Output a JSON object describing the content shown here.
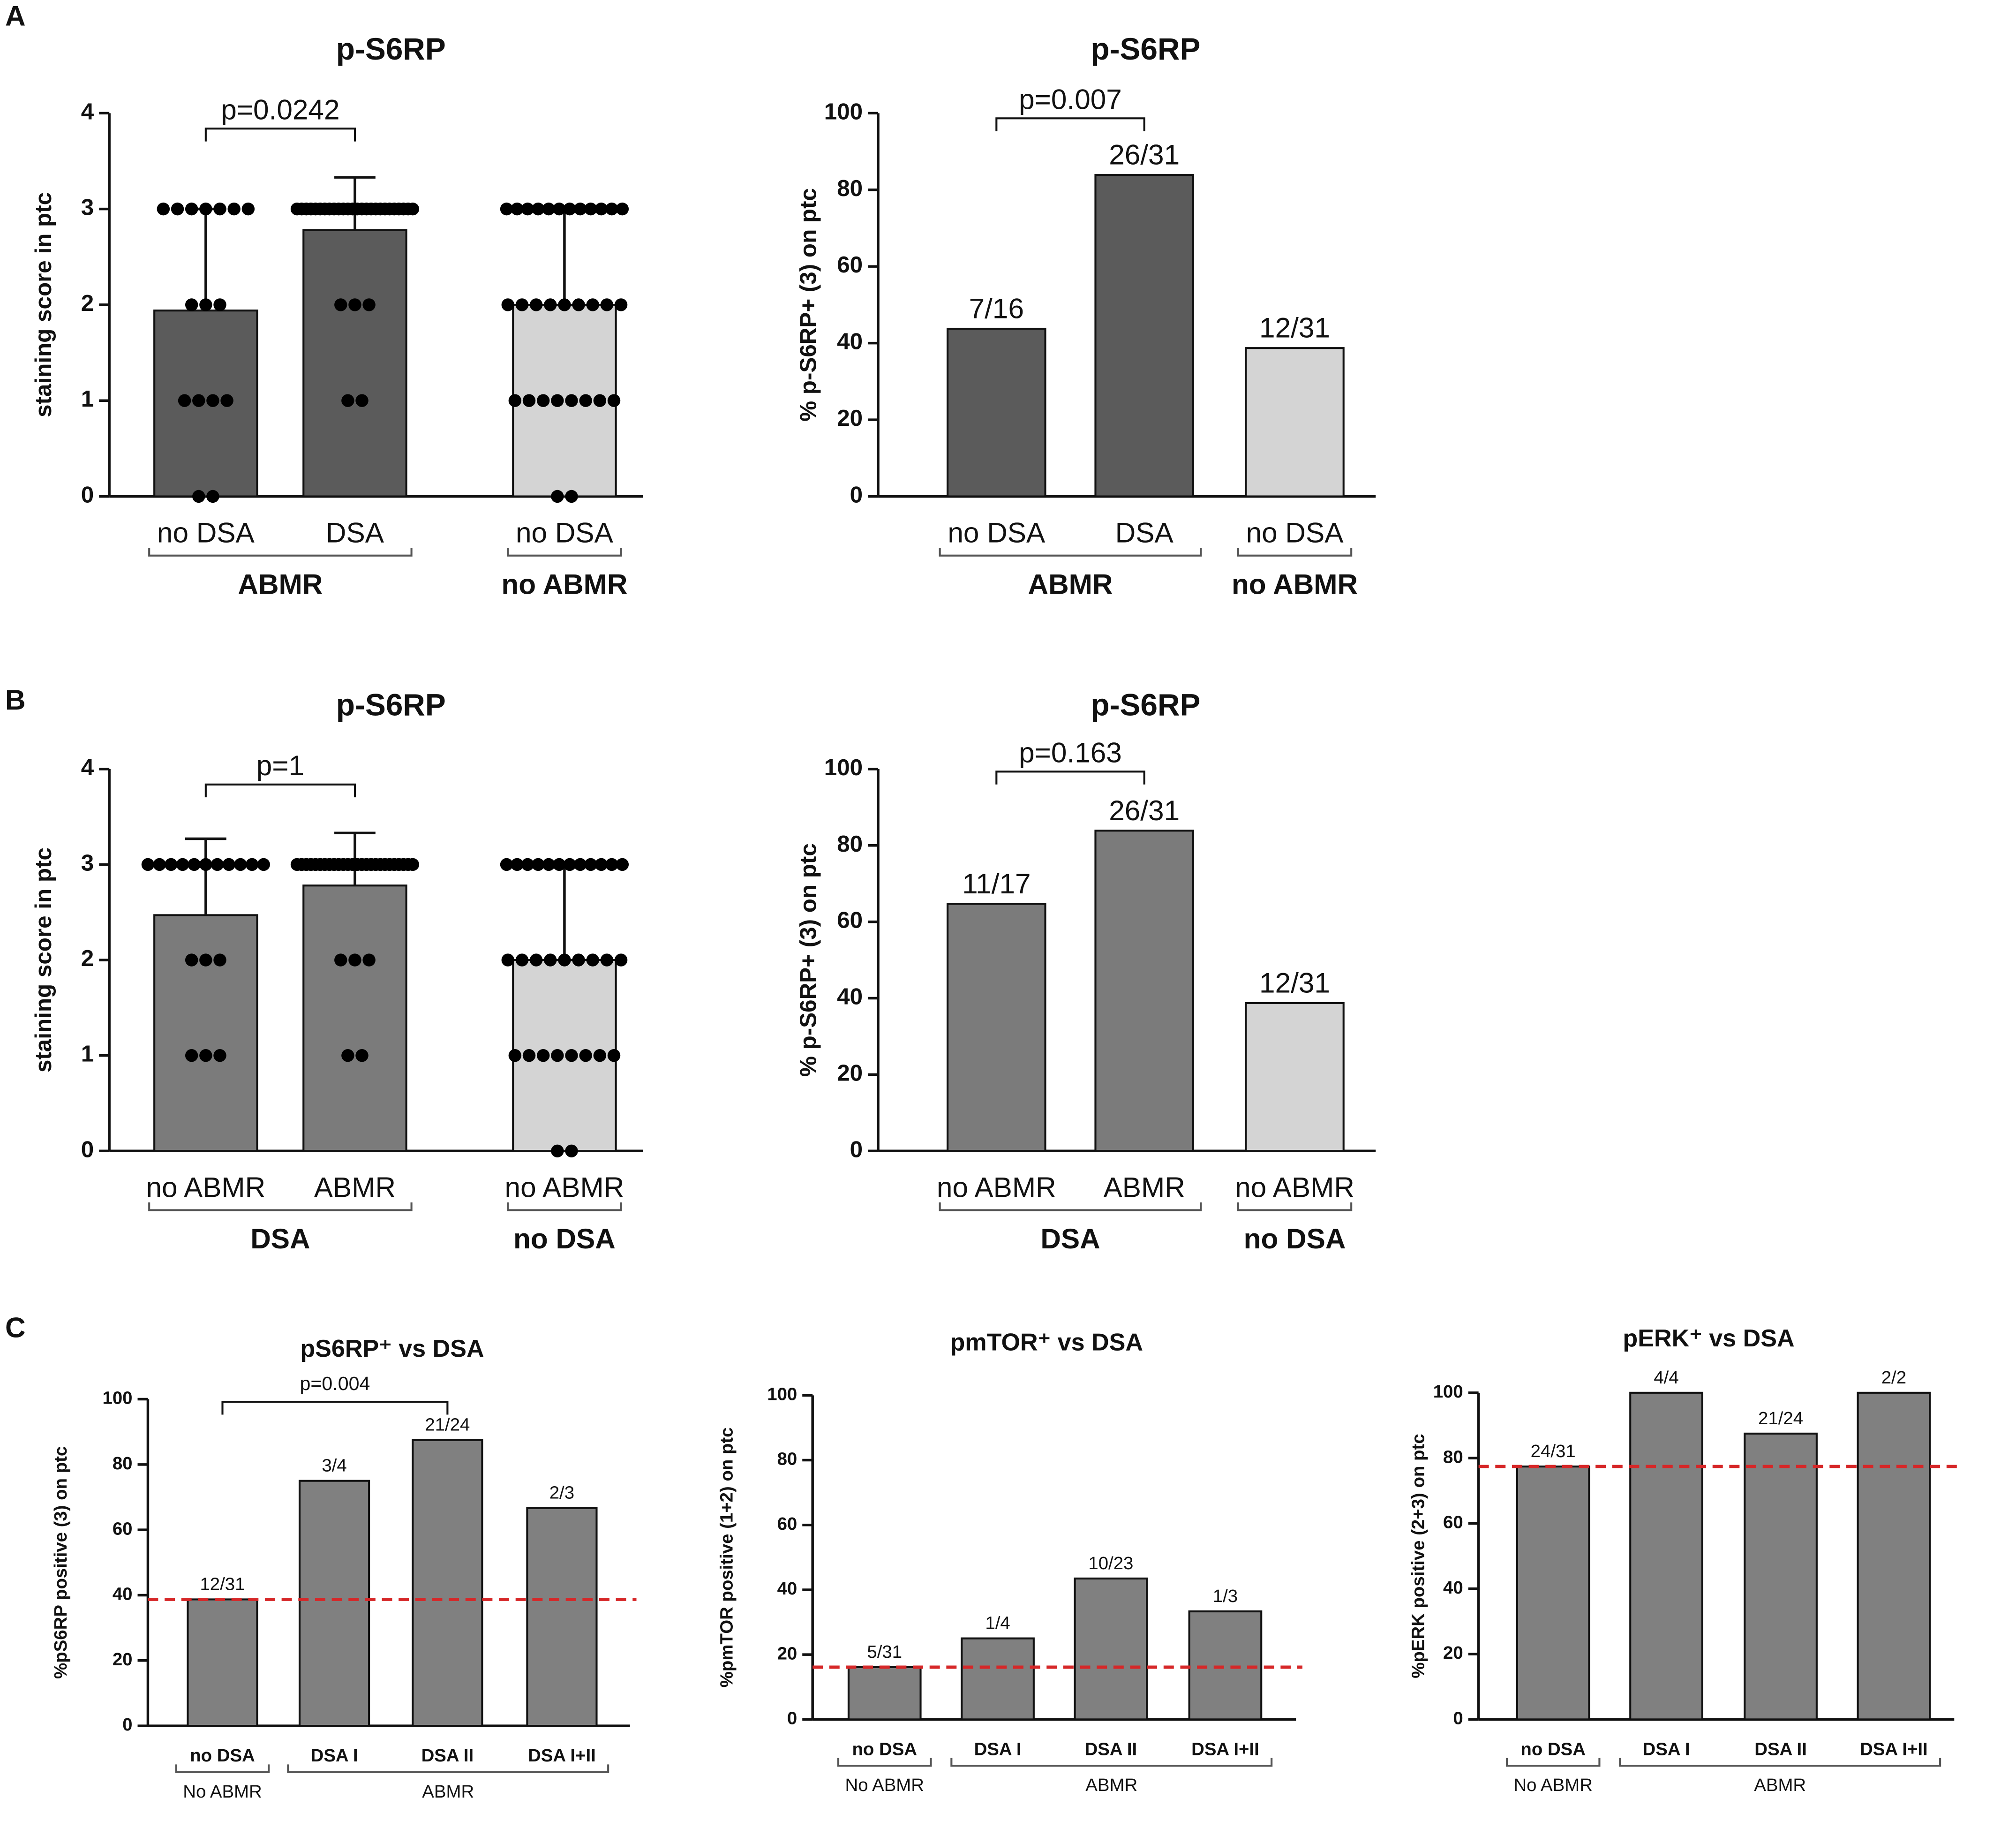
{
  "panels": [
    "A",
    "B",
    "C"
  ],
  "chart_data": [
    {
      "type": "bar",
      "title": "p-S6RP",
      "ylabel": "staining score in ptc",
      "categories": [
        "no DSA",
        "DSA",
        "no DSA"
      ],
      "groups": [
        {
          "label": "ABMR",
          "categories": [
            0,
            1
          ]
        },
        {
          "label": "no ABMR",
          "categories": [
            2
          ]
        }
      ],
      "values": [
        1.94,
        2.78,
        2.0
      ],
      "errors": [
        1.06,
        0.55,
        0.97
      ],
      "points": [
        [
          3,
          3,
          3,
          3,
          3,
          3,
          3,
          2,
          2,
          2,
          1,
          1,
          1,
          1,
          0,
          0
        ],
        [
          3,
          3,
          3,
          3,
          3,
          3,
          3,
          3,
          3,
          3,
          3,
          3,
          3,
          3,
          3,
          3,
          3,
          3,
          3,
          3,
          3,
          3,
          3,
          3,
          3,
          3,
          2,
          2,
          2,
          1,
          1
        ],
        [
          3,
          3,
          3,
          3,
          3,
          3,
          3,
          3,
          3,
          3,
          3,
          3,
          2,
          2,
          2,
          2,
          2,
          2,
          2,
          2,
          2,
          1,
          1,
          1,
          1,
          1,
          1,
          1,
          1,
          0,
          0
        ]
      ],
      "colors": [
        "#5b5b5b",
        "#5b5b5b",
        "#d4d4d4"
      ],
      "comparison": {
        "label": "p=0.0242",
        "between": [
          0,
          1
        ]
      },
      "ylim": [
        0,
        4
      ],
      "yticks": [
        0,
        1,
        2,
        3,
        4
      ]
    },
    {
      "type": "bar",
      "title": "p-S6RP",
      "ylabel": "% p-S6RP+ (3) on ptc",
      "categories": [
        "no DSA",
        "DSA",
        "no DSA"
      ],
      "groups": [
        {
          "label": "ABMR",
          "categories": [
            0,
            1
          ]
        },
        {
          "label": "no ABMR",
          "categories": [
            2
          ]
        }
      ],
      "values": [
        43.75,
        83.87,
        38.71
      ],
      "value_labels": [
        "7/16",
        "26/31",
        "12/31"
      ],
      "colors": [
        "#5b5b5b",
        "#5b5b5b",
        "#d4d4d4"
      ],
      "comparison": {
        "label": "p=0.007",
        "between": [
          0,
          1
        ]
      },
      "ylim": [
        0,
        100
      ],
      "yticks": [
        0,
        20,
        40,
        60,
        80,
        100
      ]
    },
    {
      "type": "bar",
      "title": "p-S6RP",
      "ylabel": "staining score in ptc",
      "categories": [
        "no ABMR",
        "ABMR",
        "no ABMR"
      ],
      "groups": [
        {
          "label": "DSA",
          "categories": [
            0,
            1
          ]
        },
        {
          "label": "no DSA",
          "categories": [
            2
          ]
        }
      ],
      "values": [
        2.47,
        2.78,
        2.0
      ],
      "errors": [
        0.8,
        0.55,
        0.97
      ],
      "points": [
        [
          3,
          3,
          3,
          3,
          3,
          3,
          3,
          3,
          3,
          3,
          3,
          2,
          2,
          2,
          1,
          1,
          1
        ],
        [
          3,
          3,
          3,
          3,
          3,
          3,
          3,
          3,
          3,
          3,
          3,
          3,
          3,
          3,
          3,
          3,
          3,
          3,
          3,
          3,
          3,
          3,
          3,
          3,
          3,
          3,
          2,
          2,
          2,
          1,
          1
        ],
        [
          3,
          3,
          3,
          3,
          3,
          3,
          3,
          3,
          3,
          3,
          3,
          3,
          2,
          2,
          2,
          2,
          2,
          2,
          2,
          2,
          2,
          1,
          1,
          1,
          1,
          1,
          1,
          1,
          1,
          0,
          0
        ]
      ],
      "colors": [
        "#7b7b7b",
        "#7b7b7b",
        "#d4d4d4"
      ],
      "comparison": {
        "label": "p=1",
        "between": [
          0,
          1
        ]
      },
      "ylim": [
        0,
        4
      ],
      "yticks": [
        0,
        1,
        2,
        3,
        4
      ]
    },
    {
      "type": "bar",
      "title": "p-S6RP",
      "ylabel": "% p-S6RP+ (3) on ptc",
      "categories": [
        "no ABMR",
        "ABMR",
        "no ABMR"
      ],
      "groups": [
        {
          "label": "DSA",
          "categories": [
            0,
            1
          ]
        },
        {
          "label": "no DSA",
          "categories": [
            2
          ]
        }
      ],
      "values": [
        64.71,
        83.87,
        38.71
      ],
      "value_labels": [
        "11/17",
        "26/31",
        "12/31"
      ],
      "colors": [
        "#7b7b7b",
        "#7b7b7b",
        "#d4d4d4"
      ],
      "comparison": {
        "label": "p=0.163",
        "between": [
          0,
          1
        ]
      },
      "ylim": [
        0,
        100
      ],
      "yticks": [
        0,
        20,
        40,
        60,
        80,
        100
      ]
    },
    {
      "type": "bar",
      "title": "pS6RP⁺ vs DSA",
      "ylabel": "%pS6RP positive (3) on ptc",
      "categories": [
        "no DSA",
        "DSA I",
        "DSA II",
        "DSA I+II"
      ],
      "groups": [
        {
          "label": "No ABMR",
          "categories": [
            0
          ]
        },
        {
          "label": "ABMR",
          "categories": [
            1,
            3
          ]
        }
      ],
      "values": [
        38.71,
        75,
        87.5,
        66.67
      ],
      "value_labels": [
        "12/31",
        "3/4",
        "21/24",
        "2/3"
      ],
      "colors": [
        "#808080",
        "#808080",
        "#808080",
        "#808080"
      ],
      "reference_line": 38.71,
      "reference_color": "#d62728",
      "comparison": {
        "label": "p=0.004",
        "between": [
          0,
          2
        ]
      },
      "ylim": [
        0,
        100
      ],
      "yticks": [
        0,
        20,
        40,
        60,
        80,
        100
      ]
    },
    {
      "type": "bar",
      "title": "pmTOR⁺ vs DSA",
      "ylabel": "%pmTOR positive (1+2) on ptc",
      "categories": [
        "no DSA",
        "DSA I",
        "DSA II",
        "DSA I+II"
      ],
      "groups": [
        {
          "label": "No ABMR",
          "categories": [
            0
          ]
        },
        {
          "label": "ABMR",
          "categories": [
            1,
            3
          ]
        }
      ],
      "values": [
        16.13,
        25,
        43.48,
        33.33
      ],
      "value_labels": [
        "5/31",
        "1/4",
        "10/23",
        "1/3"
      ],
      "colors": [
        "#808080",
        "#808080",
        "#808080",
        "#808080"
      ],
      "reference_line": 16.13,
      "reference_color": "#d62728",
      "ylim": [
        0,
        100
      ],
      "yticks": [
        0,
        20,
        40,
        60,
        80,
        100
      ]
    },
    {
      "type": "bar",
      "title": "pERK⁺ vs DSA",
      "ylabel": "%pERK positive (2+3) on ptc",
      "categories": [
        "no DSA",
        "DSA I",
        "DSA II",
        "DSA I+II"
      ],
      "groups": [
        {
          "label": "No ABMR",
          "categories": [
            0
          ]
        },
        {
          "label": "ABMR",
          "categories": [
            1,
            3
          ]
        }
      ],
      "values": [
        77.42,
        100,
        87.5,
        100
      ],
      "value_labels": [
        "24/31",
        "4/4",
        "21/24",
        "2/2"
      ],
      "colors": [
        "#808080",
        "#808080",
        "#808080",
        "#808080"
      ],
      "reference_line": 77.42,
      "reference_color": "#d62728",
      "ylim": [
        0,
        100
      ],
      "yticks": [
        0,
        20,
        40,
        60,
        80,
        100
      ]
    }
  ]
}
